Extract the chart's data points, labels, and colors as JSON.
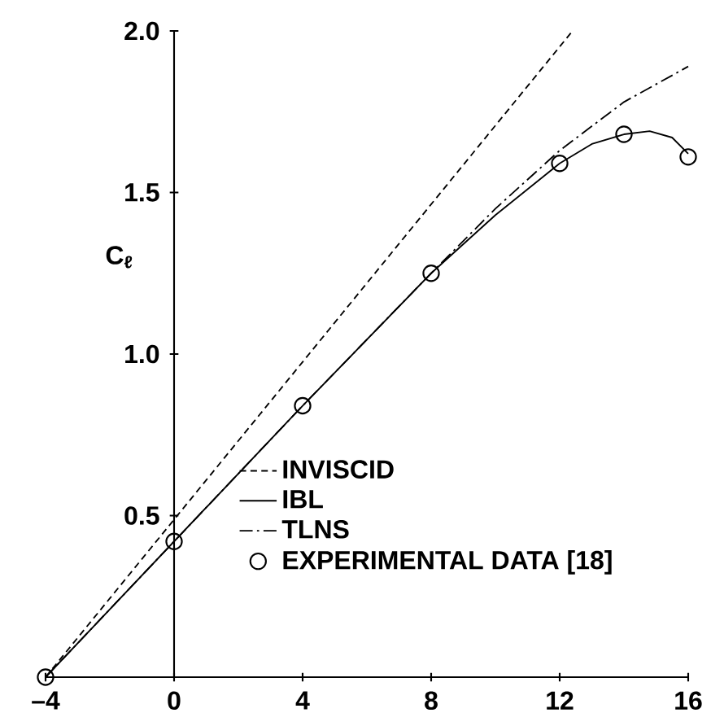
{
  "chart_data": {
    "type": "line",
    "ylabel": "C$_{ℓ}$",
    "xlim": [
      -4,
      16
    ],
    "ylim": [
      0,
      2.0
    ],
    "xticks": [
      {
        "value": -4,
        "label": "–4"
      },
      0,
      4,
      8,
      12,
      16
    ],
    "yticks": [
      {
        "value": 0.5,
        "label": "0.5"
      },
      {
        "value": 1.0,
        "label": "1.0"
      },
      {
        "value": 1.5,
        "label": "1.5"
      },
      {
        "value": 2.0,
        "label": "2.0"
      }
    ],
    "legend": "bottom right",
    "grid": false,
    "series": [
      {
        "name": "INVISCID",
        "line_style": "dashed",
        "color": "#000000",
        "x": [
          -4,
          12.4
        ],
        "values": [
          0,
          2.0
        ]
      },
      {
        "name": "IBL",
        "line_style": "solid",
        "color": "#000000",
        "x": [
          -4,
          0,
          4,
          8,
          10,
          12,
          13,
          14,
          14.8,
          15.5,
          16
        ],
        "values": [
          0,
          0.42,
          0.84,
          1.25,
          1.43,
          1.59,
          1.65,
          1.68,
          1.69,
          1.67,
          1.62
        ]
      },
      {
        "name": "TLNS",
        "line_style": "dashdot",
        "color": "#000000",
        "x": [
          -4,
          0,
          4,
          8,
          10,
          12,
          14,
          16
        ],
        "values": [
          0,
          0.42,
          0.84,
          1.25,
          1.45,
          1.63,
          1.78,
          1.89
        ]
      },
      {
        "name": "EXPERIMENTAL DATA [18]",
        "type": "scatter",
        "marker": "circle",
        "color": "#000000",
        "x": [
          -4,
          0,
          4,
          8,
          12,
          14,
          16
        ],
        "values": [
          0,
          0.42,
          0.84,
          1.25,
          1.59,
          1.68,
          1.61
        ]
      }
    ]
  }
}
